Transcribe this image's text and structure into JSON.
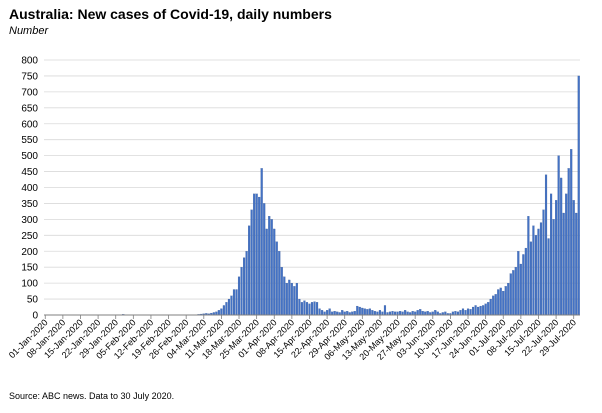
{
  "title": "Australia: New cases of Covid-19, daily numbers",
  "subtitle": "Number",
  "source": "Source: ABC news.  Data to 30 July 2020.",
  "colors": {
    "bar": "#4472c4",
    "bar_edge": "#2f528f",
    "grid": "#d9d9d9",
    "axis": "#7f7f7f"
  },
  "chart_data": {
    "type": "bar",
    "ylabel": "",
    "xlabel": "",
    "ylim": [
      0,
      800
    ],
    "yticks": [
      0,
      50,
      100,
      150,
      200,
      250,
      300,
      350,
      400,
      450,
      500,
      550,
      600,
      650,
      700,
      750,
      800
    ],
    "grid": true,
    "legend": "none",
    "x_start": "2020-01-01",
    "tick_labels": [
      "01-Jan-2020",
      "08-Jan-2020",
      "15-Jan-2020",
      "22-Jan-2020",
      "29-Jan-2020",
      "05-Feb-2020",
      "12-Feb-2020",
      "19-Feb-2020",
      "26-Feb-2020",
      "04-Mar-2020",
      "11-Mar-2020",
      "18-Mar-2020",
      "25-Mar-2020",
      "01-Apr-2020",
      "08-Apr-2020",
      "15-Apr-2020",
      "22-Apr-2020",
      "29-Apr-2020",
      "06-May-2020",
      "13-May-2020",
      "20-May-2020",
      "27-May-2020",
      "03-Jun-2020",
      "10-Jun-2020",
      "17-Jun-2020",
      "24-Jun-2020",
      "01-Jul-2020",
      "08-Jul-2020",
      "15-Jul-2020",
      "22-Jul-2020",
      "29-Jul-2020"
    ],
    "values": [
      0,
      0,
      0,
      0,
      0,
      0,
      0,
      0,
      0,
      0,
      0,
      0,
      0,
      0,
      0,
      0,
      0,
      0,
      0,
      0,
      0,
      0,
      0,
      0,
      1,
      1,
      1,
      0,
      0,
      0,
      0,
      2,
      1,
      1,
      0,
      0,
      0,
      0,
      0,
      0,
      0,
      0,
      0,
      0,
      0,
      0,
      0,
      0,
      0,
      0,
      0,
      0,
      0,
      0,
      0,
      0,
      0,
      0,
      0,
      0,
      1,
      2,
      3,
      4,
      5,
      4,
      6,
      8,
      10,
      15,
      20,
      30,
      40,
      50,
      60,
      80,
      80,
      120,
      150,
      180,
      200,
      280,
      330,
      380,
      380,
      370,
      460,
      350,
      270,
      310,
      300,
      270,
      230,
      200,
      150,
      120,
      100,
      110,
      100,
      90,
      100,
      50,
      40,
      45,
      40,
      35,
      40,
      42,
      40,
      20,
      15,
      10,
      15,
      20,
      10,
      12,
      10,
      8,
      15,
      10,
      12,
      8,
      10,
      12,
      28,
      25,
      22,
      20,
      18,
      20,
      15,
      12,
      10,
      15,
      10,
      30,
      8,
      10,
      12,
      10,
      10,
      12,
      10,
      15,
      10,
      8,
      12,
      10,
      15,
      18,
      12,
      10,
      12,
      8,
      10,
      15,
      10,
      5,
      8,
      10,
      5,
      5,
      10,
      12,
      10,
      15,
      20,
      15,
      20,
      18,
      25,
      30,
      25,
      28,
      30,
      35,
      40,
      50,
      60,
      65,
      80,
      85,
      75,
      90,
      100,
      130,
      140,
      150,
      200,
      160,
      190,
      210,
      310,
      230,
      280,
      250,
      270,
      290,
      330,
      440,
      240,
      380,
      300,
      360,
      500,
      430,
      320,
      380,
      460,
      520,
      360,
      320,
      750
    ]
  }
}
